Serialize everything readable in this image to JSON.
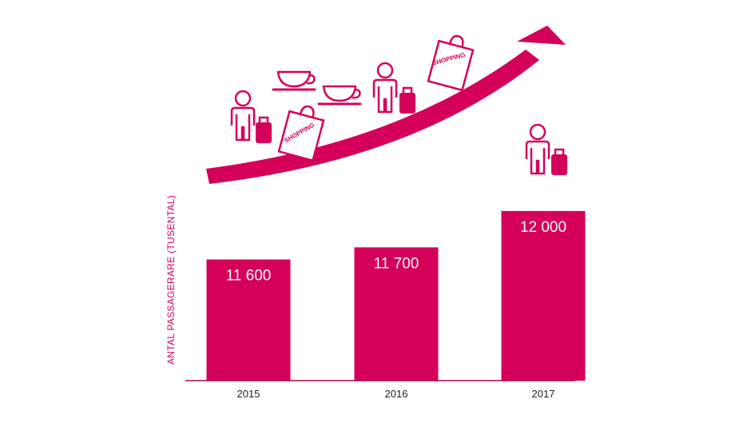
{
  "colors": {
    "accent": "#d4005a",
    "axis": "#b0004a",
    "text": "#222222"
  },
  "icons": [
    "person-icon",
    "suitcase-icon",
    "coffee-cup-icon",
    "shopping-bag-icon",
    "growth-arrow-icon"
  ],
  "decorations": {
    "shopping_bag_text": "SHOPPING"
  },
  "chart_data": {
    "type": "bar",
    "title": "",
    "xlabel": "",
    "ylabel": "ANTAL PASSAGERARE (TUSENTAL)",
    "categories": [
      "2015",
      "2016",
      "2017"
    ],
    "values": [
      11600,
      11700,
      12000
    ],
    "value_labels": [
      "11 600",
      "11 700",
      "12 000"
    ],
    "ylim": [
      10600,
      12250
    ],
    "grid": false,
    "legend": "none"
  }
}
